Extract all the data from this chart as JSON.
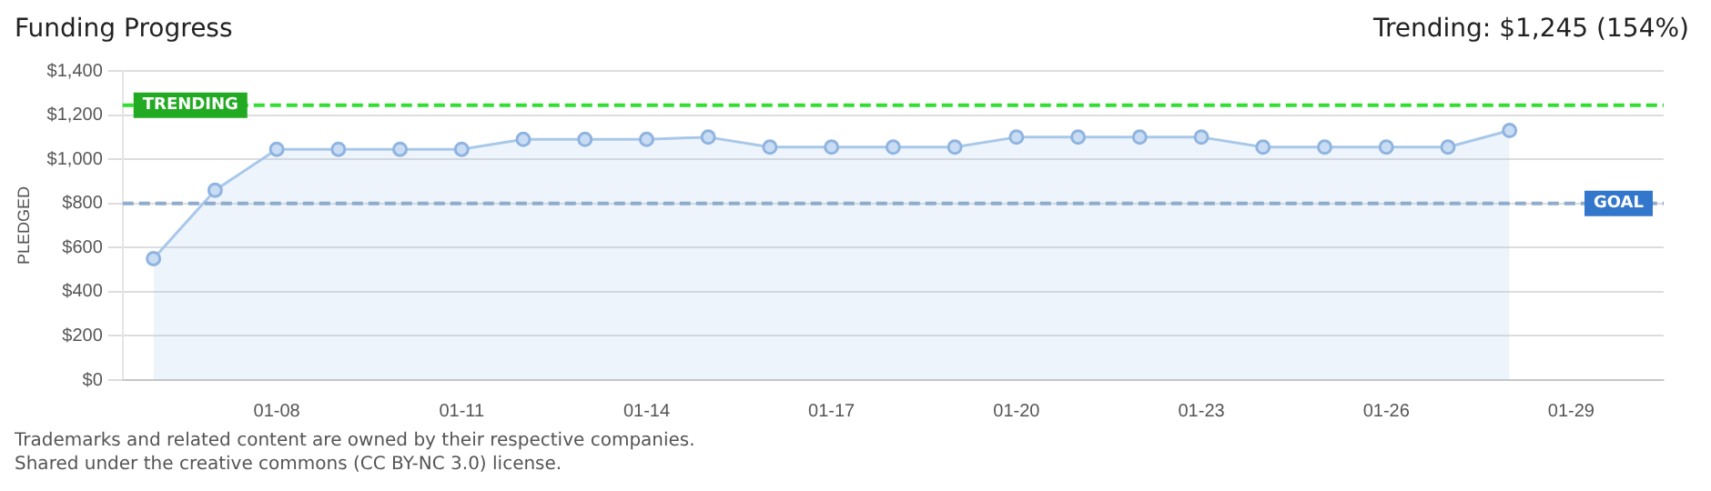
{
  "chart_data": {
    "type": "area",
    "title": "Funding Progress",
    "ylabel": "PLEDGED",
    "categories": [
      null,
      null,
      "01-08",
      null,
      null,
      "01-11",
      null,
      null,
      "01-14",
      null,
      null,
      "01-17",
      null,
      null,
      "01-20",
      null,
      null,
      "01-23",
      null,
      null,
      "01-26",
      null,
      null,
      "01-29",
      null
    ],
    "series": [
      {
        "color": "#a8c8ea",
        "values": [
          550,
          860,
          1045,
          1045,
          1045,
          1045,
          1090,
          1090,
          1090,
          1100,
          1055,
          1055,
          1055,
          1055,
          1100,
          1100,
          1100,
          1100,
          1055,
          1055,
          1055,
          1055,
          1130,
          null,
          null
        ]
      }
    ],
    "ylim": [
      0,
      1400
    ],
    "yticks": [
      {
        "value": 0,
        "label": "$0"
      },
      {
        "value": 200,
        "label": "$200"
      },
      {
        "value": 400,
        "label": "$400"
      },
      {
        "value": 600,
        "label": "$600"
      },
      {
        "value": 800,
        "label": "$800"
      },
      {
        "value": 1000,
        "label": "$1,000"
      },
      {
        "value": 1200,
        "label": "$1,200"
      },
      {
        "value": 1400,
        "label": "$1,400"
      }
    ],
    "ref_lines": [
      {
        "axis": "y",
        "value": 1245,
        "label": "TRENDING",
        "color": "#33dd33",
        "line_style": "dashed"
      },
      {
        "axis": "y",
        "value": 800,
        "label": "GOAL",
        "color": "#8faccc",
        "line_style": "dashed"
      }
    ],
    "annotations": [
      "Trending: $1,245 (154%)",
      "Trademarks and related content are owned by their respective companies.",
      "Shared under the creative commons (CC BY-NC 3.0) license."
    ],
    "grid": "y",
    "marker": "circle",
    "legend": false
  }
}
